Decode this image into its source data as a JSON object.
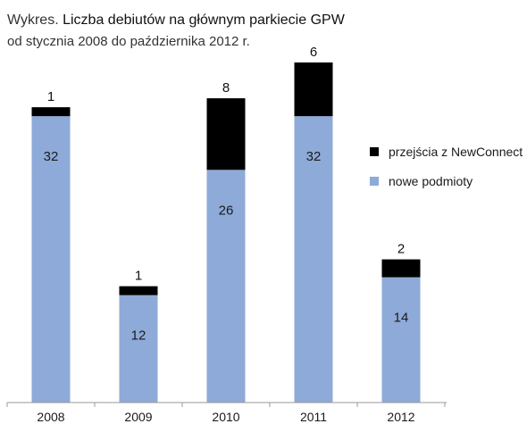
{
  "chart_data": {
    "type": "bar",
    "stacked": true,
    "title_prefix": "Wykres.",
    "title": "Liczba debiutów na głównym parkiecie GPW",
    "subtitle": "od stycznia 2008 do października 2012 r.",
    "categories": [
      "2008",
      "2009",
      "2010",
      "2011",
      "2012"
    ],
    "series": [
      {
        "name": "nowe podmioty",
        "values": [
          32,
          12,
          26,
          32,
          14
        ],
        "color": "#8eaad8"
      },
      {
        "name": "przejścia z NewConnect",
        "values": [
          1,
          1,
          8,
          6,
          2
        ],
        "color": "#000000"
      }
    ],
    "ylim": [
      0,
      38
    ],
    "grid": false,
    "legend_position": "right"
  }
}
